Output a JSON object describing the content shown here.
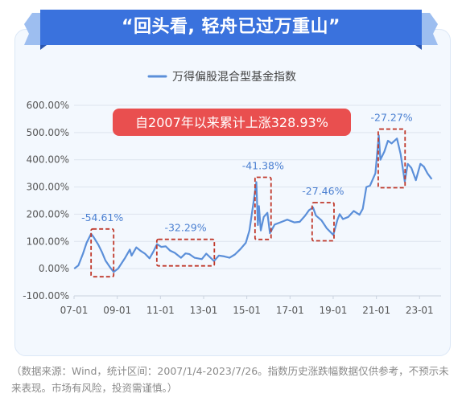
{
  "banner": {
    "title": "“回头看, 轻舟已过万重山”"
  },
  "chart_data": {
    "type": "line",
    "series": [
      {
        "name": "万得偏股混合型基金指数",
        "color": "#5b8fd9",
        "points": [
          [
            "2007-01-04",
            0
          ],
          [
            "2007-03-15",
            12
          ],
          [
            "2007-06-01",
            55
          ],
          [
            "2007-08-01",
            95
          ],
          [
            "2007-10-16",
            128
          ],
          [
            "2007-12-01",
            115
          ],
          [
            "2008-02-15",
            88
          ],
          [
            "2008-04-15",
            62
          ],
          [
            "2008-06-15",
            30
          ],
          [
            "2008-09-01",
            5
          ],
          [
            "2008-11-01",
            -12
          ],
          [
            "2009-01-15",
            0
          ],
          [
            "2009-03-15",
            20
          ],
          [
            "2009-05-15",
            40
          ],
          [
            "2009-08-01",
            70
          ],
          [
            "2009-09-01",
            48
          ],
          [
            "2009-11-20",
            78
          ],
          [
            "2010-02-01",
            65
          ],
          [
            "2010-04-15",
            55
          ],
          [
            "2010-07-01",
            38
          ],
          [
            "2010-09-01",
            62
          ],
          [
            "2010-11-05",
            90
          ],
          [
            "2011-01-15",
            80
          ],
          [
            "2011-04-01",
            82
          ],
          [
            "2011-06-15",
            66
          ],
          [
            "2011-09-01",
            58
          ],
          [
            "2011-12-15",
            40
          ],
          [
            "2012-03-01",
            56
          ],
          [
            "2012-05-01",
            54
          ],
          [
            "2012-08-01",
            40
          ],
          [
            "2012-12-01",
            35
          ],
          [
            "2013-02-15",
            55
          ],
          [
            "2013-06-25",
            28
          ],
          [
            "2013-09-15",
            48
          ],
          [
            "2013-12-15",
            45
          ],
          [
            "2014-03-15",
            40
          ],
          [
            "2014-06-15",
            52
          ],
          [
            "2014-09-15",
            72
          ],
          [
            "2014-12-15",
            95
          ],
          [
            "2015-02-15",
            140
          ],
          [
            "2015-04-15",
            230
          ],
          [
            "2015-06-12",
            318
          ],
          [
            "2015-07-08",
            160
          ],
          [
            "2015-07-25",
            230
          ],
          [
            "2015-08-26",
            140
          ],
          [
            "2015-10-15",
            190
          ],
          [
            "2015-12-15",
            205
          ],
          [
            "2016-01-28",
            130
          ],
          [
            "2016-04-15",
            162
          ],
          [
            "2016-08-15",
            172
          ],
          [
            "2016-11-15",
            180
          ],
          [
            "2017-03-15",
            170
          ],
          [
            "2017-06-15",
            172
          ],
          [
            "2017-09-15",
            195
          ],
          [
            "2017-11-15",
            214
          ],
          [
            "2018-01-25",
            225
          ],
          [
            "2018-03-15",
            195
          ],
          [
            "2018-06-15",
            178
          ],
          [
            "2018-09-15",
            148
          ],
          [
            "2019-01-03",
            124
          ],
          [
            "2019-03-15",
            180
          ],
          [
            "2019-04-20",
            200
          ],
          [
            "2019-06-15",
            182
          ],
          [
            "2019-09-15",
            190
          ],
          [
            "2019-12-15",
            212
          ],
          [
            "2020-03-20",
            198
          ],
          [
            "2020-05-15",
            220
          ],
          [
            "2020-07-15",
            300
          ],
          [
            "2020-09-15",
            305
          ],
          [
            "2020-12-15",
            350
          ],
          [
            "2021-02-10",
            490
          ],
          [
            "2021-03-10",
            400
          ],
          [
            "2021-05-15",
            430
          ],
          [
            "2021-07-15",
            470
          ],
          [
            "2021-09-15",
            460
          ],
          [
            "2021-12-15",
            478
          ],
          [
            "2022-02-15",
            420
          ],
          [
            "2022-04-26",
            320
          ],
          [
            "2022-06-15",
            385
          ],
          [
            "2022-08-15",
            370
          ],
          [
            "2022-10-31",
            325
          ],
          [
            "2023-01-15",
            385
          ],
          [
            "2023-03-15",
            375
          ],
          [
            "2023-05-15",
            350
          ],
          [
            "2023-07-26",
            328.93
          ]
        ]
      }
    ],
    "x_ticks": [
      {
        "label": "07-01",
        "date": "2007-01-01"
      },
      {
        "label": "09-01",
        "date": "2009-01-01"
      },
      {
        "label": "11-01",
        "date": "2011-01-01"
      },
      {
        "label": "13-01",
        "date": "2013-01-01"
      },
      {
        "label": "15-01",
        "date": "2015-01-01"
      },
      {
        "label": "17-01",
        "date": "2017-01-01"
      },
      {
        "label": "19-01",
        "date": "2019-01-01"
      },
      {
        "label": "21-01",
        "date": "2021-01-01"
      },
      {
        "label": "23-01",
        "date": "2023-01-01"
      }
    ],
    "xlim": [
      "2007-01-01",
      "2023-12-31"
    ],
    "y_ticks": [
      {
        "label": "600.00%",
        "value": 600
      },
      {
        "label": "500.00%",
        "value": 500
      },
      {
        "label": "400.00%",
        "value": 400
      },
      {
        "label": "300.00%",
        "value": 300
      },
      {
        "label": "200.00%",
        "value": 200
      },
      {
        "label": "100.00%",
        "value": 100
      },
      {
        "label": "0.00%",
        "value": 0
      },
      {
        "label": "-100.00%",
        "value": -100
      }
    ],
    "ylim": [
      -100,
      600
    ],
    "grid": true,
    "legend_position": "top-center",
    "headline": {
      "text": "自2007年以来累计上涨328.93%",
      "color": "#e94f4f"
    },
    "drawdowns": [
      {
        "label": "-54.61%",
        "start": "2007-10-16",
        "end": "2008-11-01",
        "low": -12,
        "high": 128
      },
      {
        "label": "-32.29%",
        "start": "2010-11-01",
        "end": "2013-07-01",
        "low": 28,
        "high": 90
      },
      {
        "label": "-41.38%",
        "start": "2015-05-20",
        "end": "2016-02-15",
        "low": 125,
        "high": 318
      },
      {
        "label": "-27.46%",
        "start": "2018-01-10",
        "end": "2019-01-15",
        "low": 120,
        "high": 225
      },
      {
        "label": "-27.27%",
        "start": "2021-02-01",
        "end": "2022-05-01",
        "low": 315,
        "high": 495
      }
    ],
    "drawdown_color": "#c0392b",
    "annotation_color": "#4a7fd1"
  },
  "footnote": "（数据来源：Wind，统计区间：2007/1/4-2023/7/26。指数历史涨跌幅数据仅供参考，不预示未来表现。市场有风险，投资需谨慎。）"
}
